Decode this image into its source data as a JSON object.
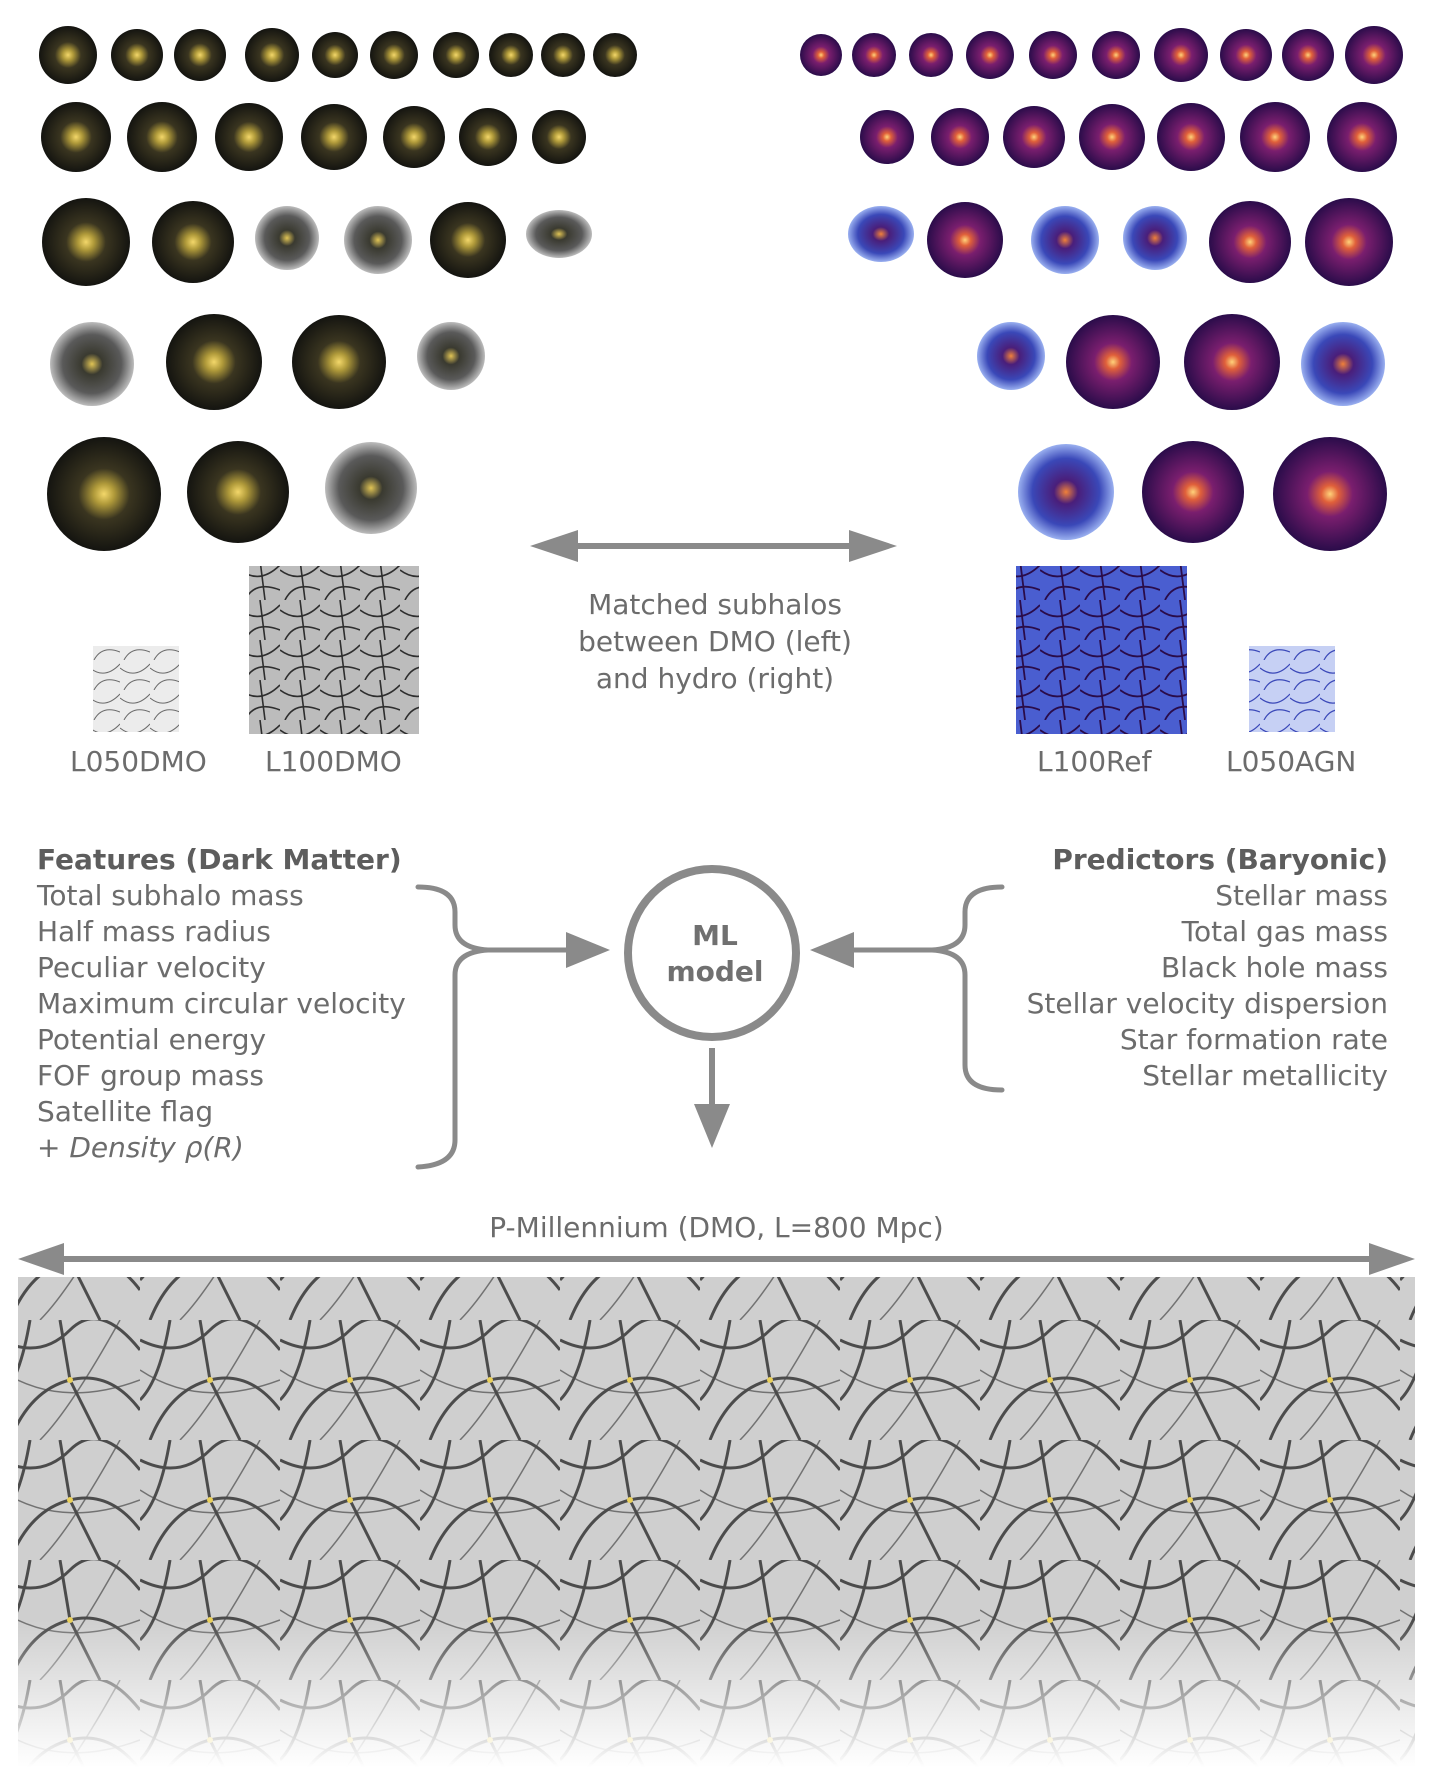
{
  "sim_labels": {
    "l050dmo": "L050DMO",
    "l100dmo": "L100DMO",
    "l100ref": "L100Ref",
    "l050agn": "L050AGN"
  },
  "matched_caption": [
    "Matched subhalos",
    "between DMO (left)",
    "and hydro (right)"
  ],
  "features": {
    "title": "Features (Dark Matter)",
    "items": [
      "Total subhalo mass",
      "Half mass radius",
      "Peculiar velocity",
      "Maximum circular velocity",
      "Potential energy",
      "FOF group mass",
      "Satellite flag"
    ],
    "extra_prefix": "+ ",
    "extra_item": "Density ρ(R)"
  },
  "predictors": {
    "title": "Predictors (Baryonic)",
    "items": [
      "Stellar mass",
      "Total gas mass",
      "Black hole mass",
      "Stellar velocity dispersion",
      "Star formation rate",
      "Stellar metallicity"
    ]
  },
  "ml_model": [
    "ML",
    "model"
  ],
  "p_millennium_label": "P-Millennium (DMO, L=800 Mpc)",
  "colors": {
    "arrow_gray": "#8a8a8a",
    "dmo_dark": "#171712",
    "dmo_glow": "#e8cf5a",
    "hydro_dark": "#2a0c4a",
    "hydro_glow": "#f08a3a",
    "hydro_blue": "#5a6ad8",
    "text_gray": "#6c6c6c"
  },
  "icons": {
    "arrow": "double-headed-arrow",
    "brace": "curly-brace"
  }
}
